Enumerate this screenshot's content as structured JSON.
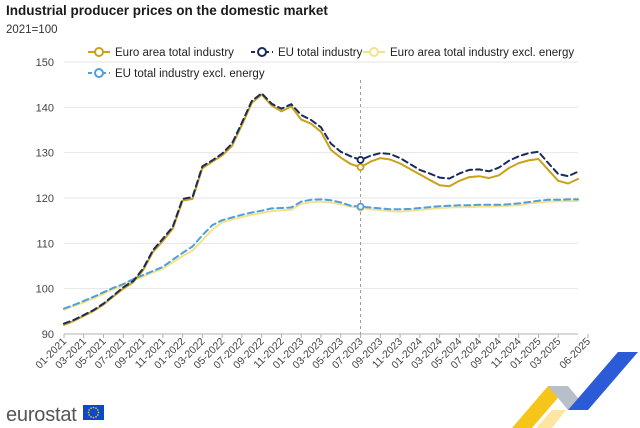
{
  "chart_data": {
    "type": "line",
    "title": "Industrial producer prices on the domestic market",
    "unit": "2021=100",
    "ylim": [
      90,
      150
    ],
    "yticks": [
      90,
      100,
      110,
      120,
      130,
      140,
      150
    ],
    "x_tick_labels": [
      "01-2021",
      "03-2021",
      "05-2021",
      "07-2021",
      "09-2021",
      "11-2021",
      "01-2022",
      "03-2022",
      "05-2022",
      "07-2022",
      "09-2022",
      "11-2022",
      "01-2023",
      "03-2023",
      "05-2023",
      "07-2023",
      "09-2023",
      "11-2023",
      "01-2024",
      "03-2024",
      "05-2024",
      "07-2024",
      "09-2024",
      "11-2024",
      "01-2025",
      "03-2025",
      "06-2025"
    ],
    "marker_month": "07-2023",
    "grid": "horizontal",
    "legend_position": "top",
    "series": [
      {
        "name": "Euro area total industry",
        "color": "#c9a21a",
        "dash": "solid",
        "values": [
          92.0,
          92.9,
          94.0,
          95.1,
          96.5,
          98.3,
          100.0,
          101.4,
          104.1,
          108.1,
          110.5,
          113.2,
          119.4,
          119.8,
          126.6,
          128.0,
          129.4,
          131.5,
          136.1,
          141.0,
          142.8,
          140.4,
          139.1,
          140.2,
          137.3,
          136.4,
          134.6,
          130.6,
          128.9,
          127.5,
          126.8,
          128.0,
          128.8,
          128.5,
          127.6,
          126.4,
          125.2,
          124.0,
          122.8,
          122.6,
          123.8,
          124.6,
          124.8,
          124.4,
          125.0,
          126.6,
          127.7,
          128.3,
          128.6,
          126.2,
          123.8,
          123.2,
          124.2
        ]
      },
      {
        "name": "EU total industry",
        "color": "#1a2a5c",
        "dash": "dashed",
        "values": [
          92.3,
          93.1,
          94.2,
          95.3,
          96.7,
          98.5,
          100.3,
          101.7,
          104.4,
          108.5,
          111.0,
          113.6,
          119.8,
          120.2,
          127.0,
          128.3,
          129.8,
          132.0,
          136.6,
          141.4,
          143.1,
          140.8,
          139.7,
          140.7,
          138.3,
          137.2,
          135.6,
          132.0,
          130.2,
          129.2,
          128.4,
          129.3,
          129.9,
          129.7,
          128.8,
          127.5,
          126.2,
          125.4,
          124.5,
          124.3,
          125.4,
          126.2,
          126.3,
          125.9,
          126.7,
          128.2,
          129.2,
          129.9,
          130.2,
          127.7,
          125.3,
          124.8,
          125.8
        ]
      },
      {
        "name": "Euro area total industry excl. energy",
        "color": "#f4e38a",
        "dash": "solid",
        "values": [
          95.4,
          96.2,
          97.0,
          97.9,
          98.9,
          99.9,
          100.7,
          101.8,
          102.7,
          103.6,
          104.4,
          105.8,
          107.2,
          108.4,
          110.7,
          113.0,
          114.6,
          115.3,
          115.8,
          116.3,
          116.7,
          117.1,
          117.3,
          117.4,
          118.7,
          119.1,
          119.2,
          119.0,
          118.6,
          118.1,
          117.8,
          117.5,
          117.3,
          117.1,
          117.0,
          117.2,
          117.4,
          117.6,
          117.8,
          117.9,
          118.0,
          118.0,
          118.1,
          118.1,
          118.2,
          118.3,
          118.4,
          118.8,
          119.0,
          119.2,
          119.3,
          119.3,
          119.4
        ]
      },
      {
        "name": "EU total industry excl. energy",
        "color": "#4f9fe0",
        "dash": "dashed",
        "values": [
          95.6,
          96.4,
          97.3,
          98.2,
          99.2,
          100.2,
          101.0,
          102.1,
          103.0,
          103.9,
          104.8,
          106.4,
          107.9,
          109.3,
          111.8,
          114.0,
          115.1,
          115.7,
          116.3,
          116.8,
          117.2,
          117.7,
          117.8,
          117.9,
          119.2,
          119.6,
          119.7,
          119.5,
          119.0,
          118.3,
          118.1,
          117.9,
          117.7,
          117.5,
          117.5,
          117.6,
          117.8,
          118.0,
          118.2,
          118.3,
          118.4,
          118.4,
          118.5,
          118.5,
          118.5,
          118.6,
          118.8,
          119.1,
          119.4,
          119.6,
          119.6,
          119.7,
          119.7
        ]
      }
    ]
  },
  "branding": {
    "logo_text": "eurostat",
    "flag_color": "#0e47cb",
    "star_color": "#ffd617"
  }
}
